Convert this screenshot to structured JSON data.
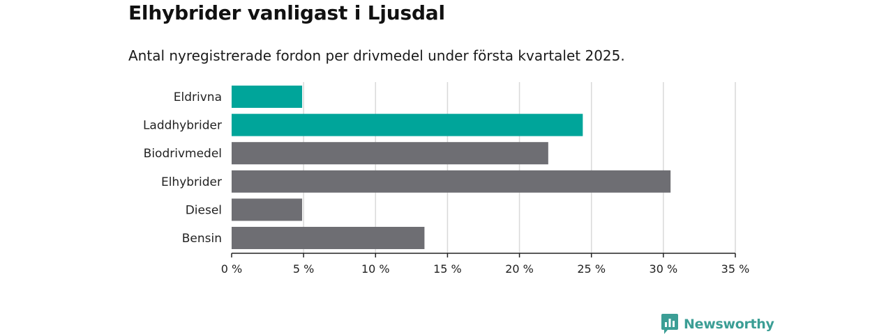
{
  "header": {
    "title": "Elhybrider vanligast i Ljusdal",
    "subtitle": "Antal nyregistrerade fordon per drivmedel under första kvartalet 2025."
  },
  "chart_data": {
    "type": "bar",
    "orientation": "horizontal",
    "categories": [
      "Eldrivna",
      "Laddhybrider",
      "Biodrivmedel",
      "Elhybrider",
      "Diesel",
      "Bensin"
    ],
    "values": [
      4.9,
      24.4,
      22.0,
      30.5,
      4.9,
      13.4
    ],
    "colors": [
      "#00a59a",
      "#00a59a",
      "#6e6e73",
      "#6e6e73",
      "#6e6e73",
      "#6e6e73"
    ],
    "xlim": [
      0,
      35
    ],
    "xticks": [
      0,
      5,
      10,
      15,
      20,
      25,
      30,
      35
    ],
    "xtick_labels": [
      "0 %",
      "5 %",
      "10 %",
      "15 %",
      "20 %",
      "25 %",
      "30 %",
      "35 %"
    ],
    "grid": true,
    "xlabel": "",
    "ylabel": ""
  },
  "branding": {
    "logo_text": "Newsworthy",
    "logo_color": "#3b9e95"
  }
}
